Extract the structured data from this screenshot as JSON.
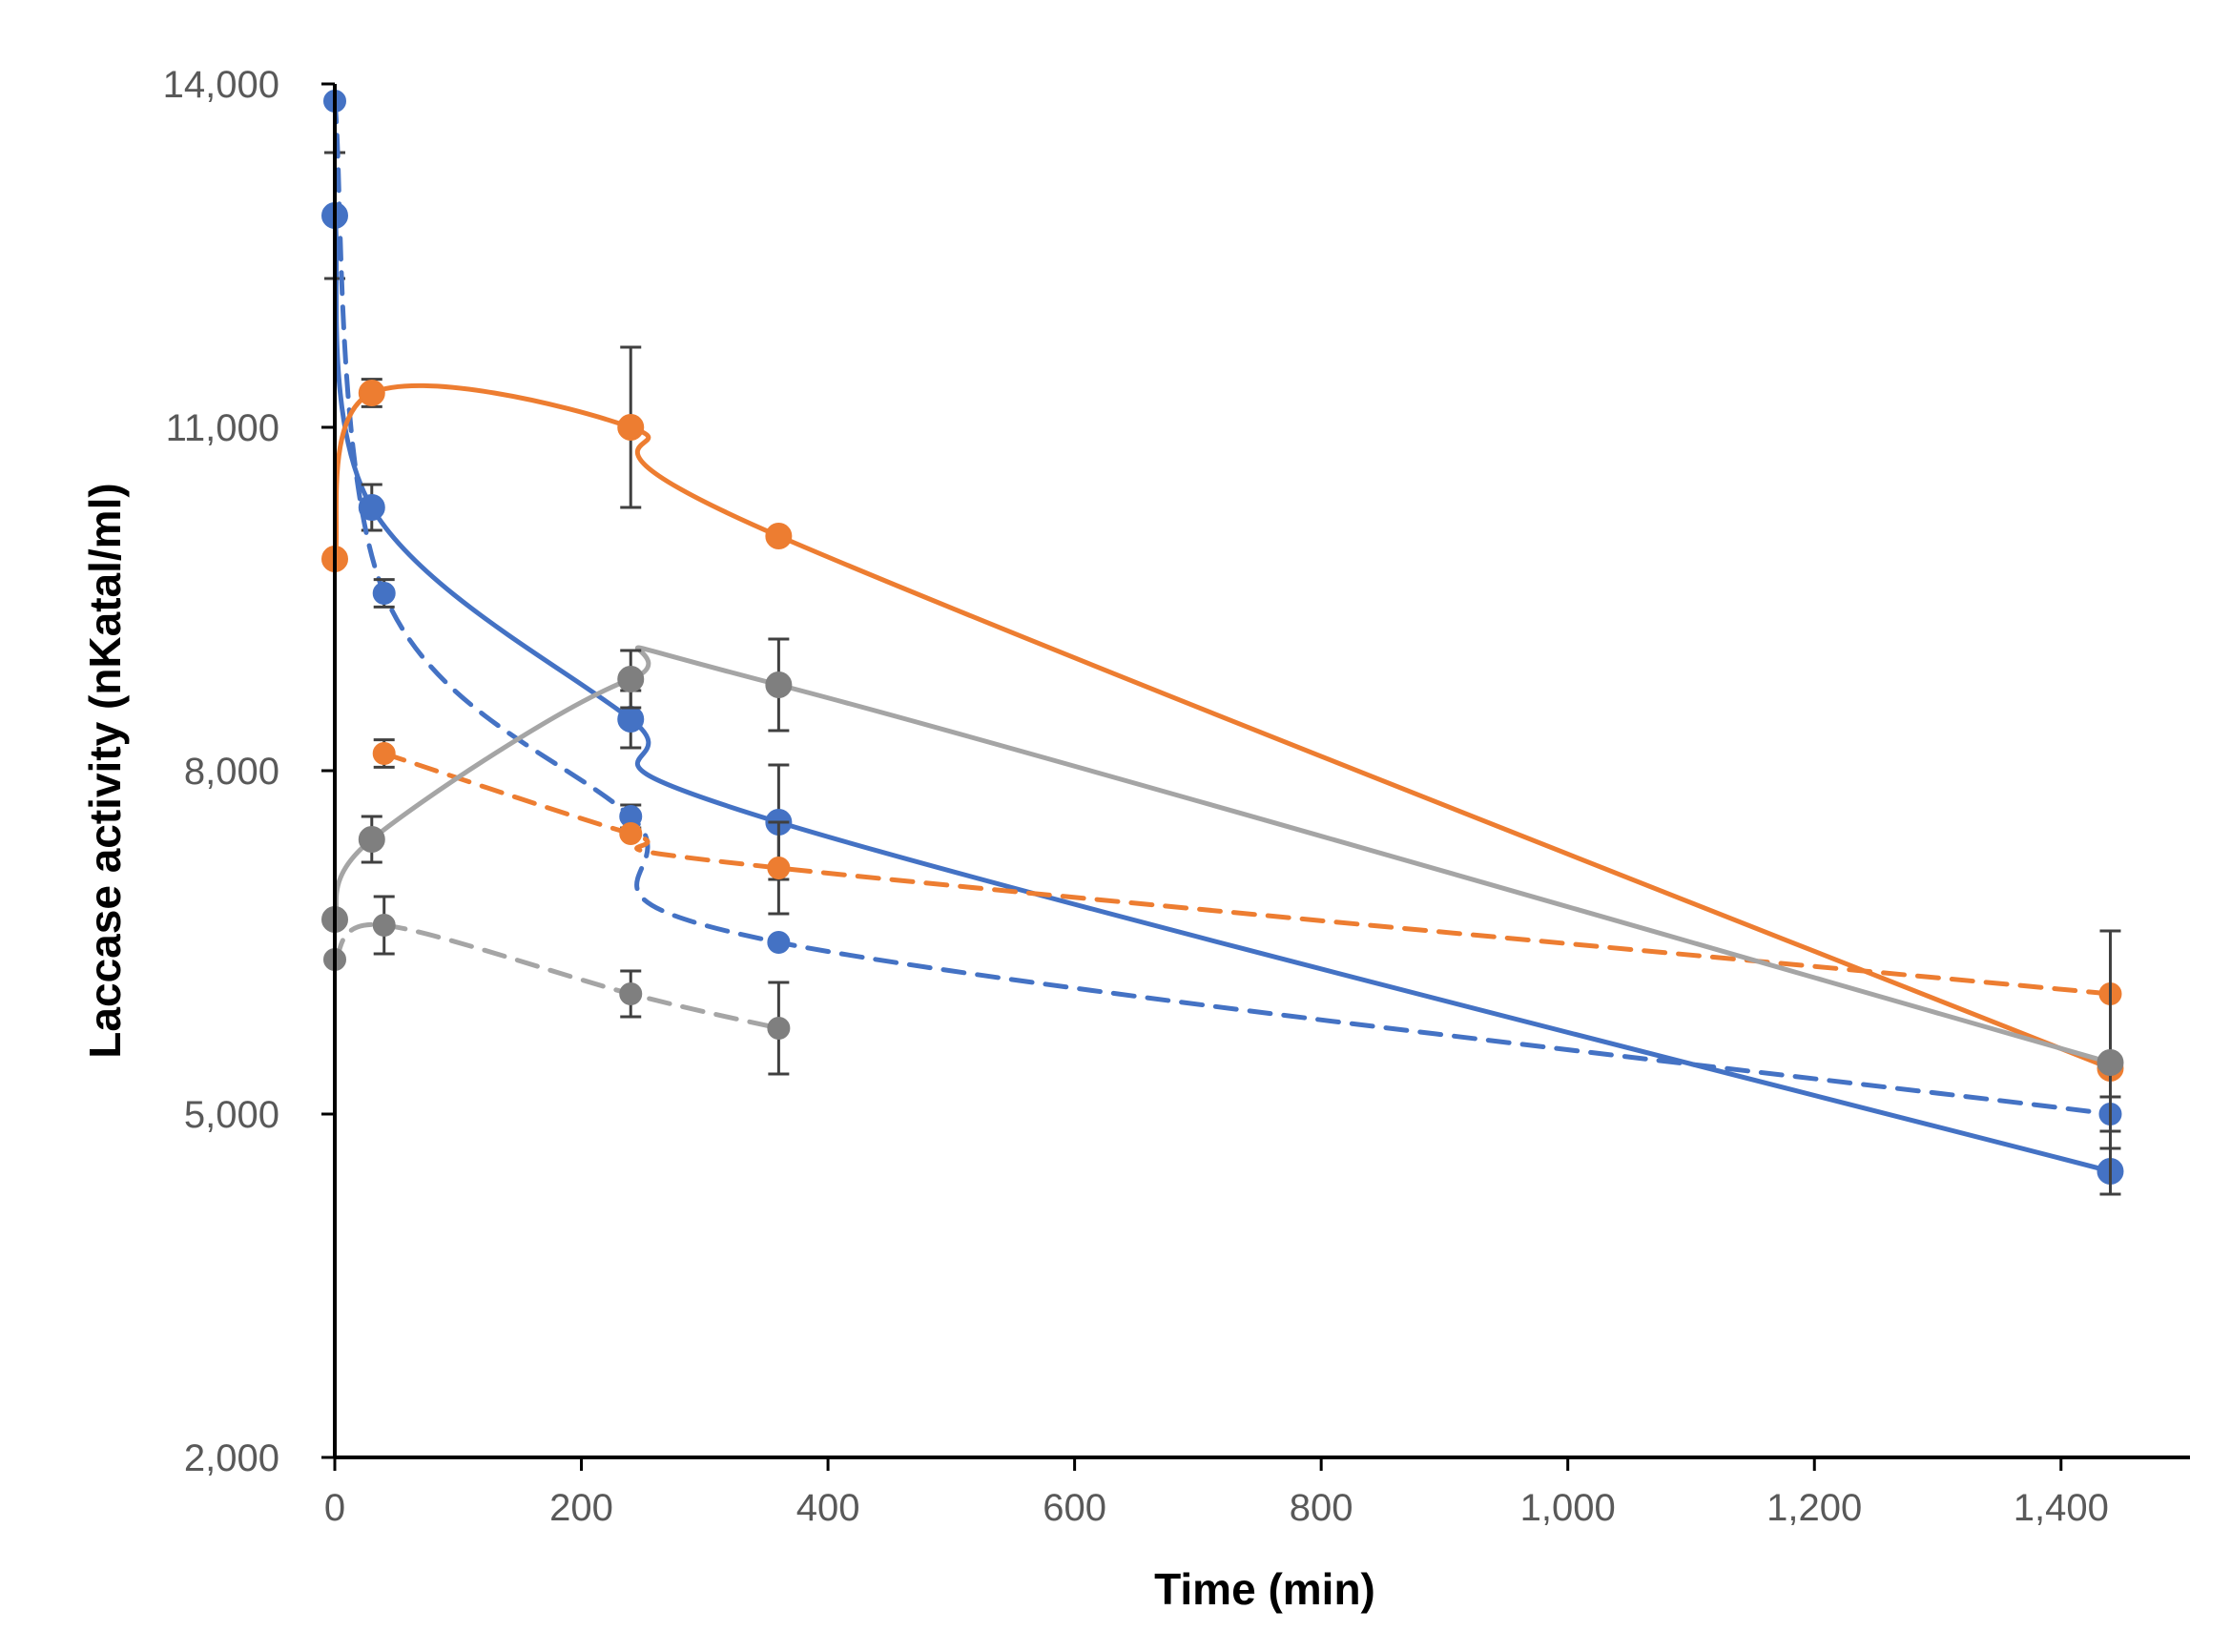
{
  "chart_data": {
    "type": "line",
    "title": "",
    "xlabel": "Time (min)",
    "ylabel": "Laccase activity (nKatal/ml)",
    "xlim": [
      0,
      1500
    ],
    "ylim": [
      2000,
      14000
    ],
    "x_ticks": [
      0,
      200,
      400,
      600,
      800,
      1000,
      1200,
      1400
    ],
    "x_tick_labels": [
      "0",
      "200",
      "400",
      "600",
      "800",
      "1,000",
      "1,200",
      "1,400"
    ],
    "y_ticks": [
      2000,
      5000,
      8000,
      11000,
      14000
    ],
    "y_tick_labels": [
      "2,000",
      "5,000",
      "8,000",
      "11,000",
      "14,000"
    ],
    "grid": false,
    "legend": "none",
    "series": [
      {
        "name": "blue-solid",
        "color": "#4472C4",
        "dash": false,
        "points": [
          {
            "x": 0,
            "y": 12850,
            "err": 550
          },
          {
            "x": 30,
            "y": 10300,
            "err": 200
          },
          {
            "x": 240,
            "y": 8450,
            "err": 250
          },
          {
            "x": 360,
            "y": 7550,
            "err": 500
          },
          {
            "x": 1440,
            "y": 4500,
            "err": 200
          }
        ]
      },
      {
        "name": "blue-dashed",
        "color": "#4472C4",
        "dash": true,
        "points": [
          {
            "x": 0,
            "y": 13850,
            "err": 0
          },
          {
            "x": 40,
            "y": 9550,
            "err": 120
          },
          {
            "x": 240,
            "y": 7600,
            "err": 100
          },
          {
            "x": 360,
            "y": 6500,
            "err": 0
          },
          {
            "x": 1440,
            "y": 5000,
            "err": 150
          }
        ]
      },
      {
        "name": "orange-solid",
        "color": "#ED7D31",
        "dash": false,
        "points": [
          {
            "x": 0,
            "y": 9850,
            "err": 0
          },
          {
            "x": 30,
            "y": 11300,
            "err": 120
          },
          {
            "x": 240,
            "y": 11000,
            "err": 700
          },
          {
            "x": 360,
            "y": 10050,
            "err": 0
          },
          {
            "x": 1440,
            "y": 5400,
            "err": 0
          }
        ]
      },
      {
        "name": "orange-dashed",
        "color": "#ED7D31",
        "dash": true,
        "points": [
          {
            "x": 40,
            "y": 8150,
            "err": 120
          },
          {
            "x": 240,
            "y": 7450,
            "err": 0
          },
          {
            "x": 360,
            "y": 7150,
            "err": 400
          },
          {
            "x": 1440,
            "y": 6050,
            "err": 0
          }
        ]
      },
      {
        "name": "gray-solid",
        "color": "#A5A5A5",
        "dash": false,
        "marker": "#7F7F7F",
        "points": [
          {
            "x": 0,
            "y": 6700,
            "err": 0
          },
          {
            "x": 30,
            "y": 7400,
            "err": 200
          },
          {
            "x": 240,
            "y": 8800,
            "err": 250
          },
          {
            "x": 360,
            "y": 8750,
            "err": 400
          },
          {
            "x": 1440,
            "y": 5450,
            "err": 1150
          }
        ]
      },
      {
        "name": "gray-dashed",
        "color": "#A5A5A5",
        "dash": true,
        "marker": "#7F7F7F",
        "points": [
          {
            "x": 0,
            "y": 6350,
            "err": 0
          },
          {
            "x": 40,
            "y": 6650,
            "err": 250
          },
          {
            "x": 240,
            "y": 6050,
            "err": 200
          },
          {
            "x": 360,
            "y": 5750,
            "err": 400
          }
        ]
      }
    ]
  }
}
